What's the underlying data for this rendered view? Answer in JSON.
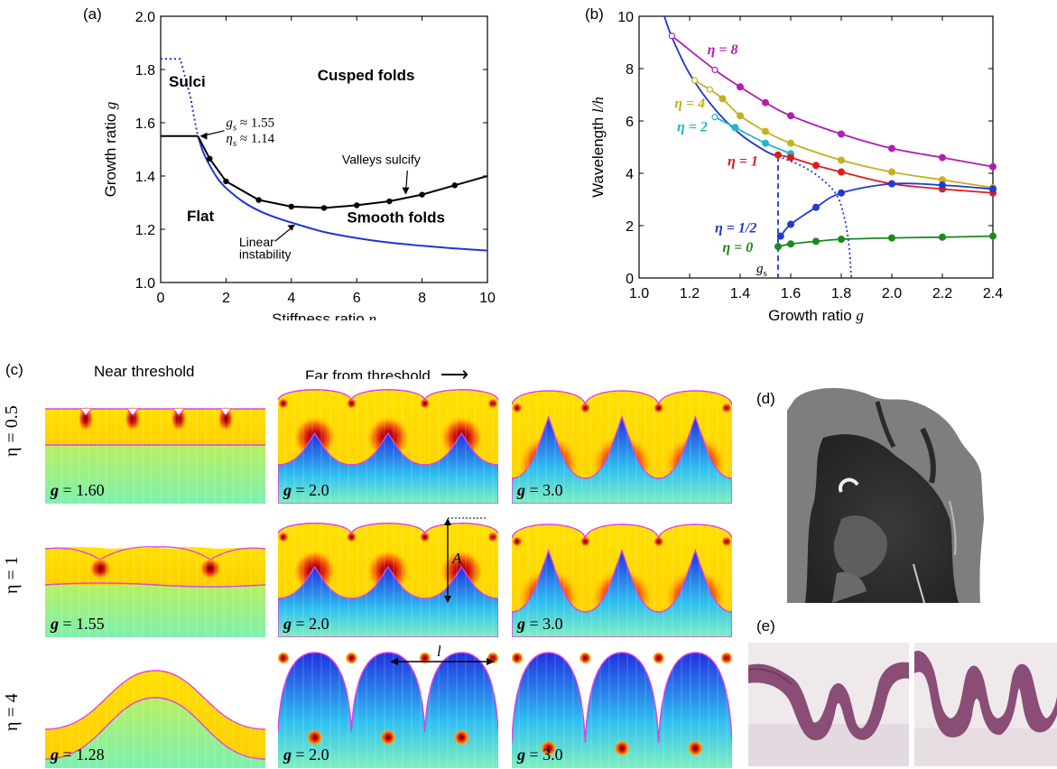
{
  "colors": {
    "blue": "#1f35d6",
    "black": "#000000",
    "eta8": "#b020b0",
    "eta4": "#c2b21e",
    "eta2": "#1fb8c8",
    "eta1": "#e01c1c",
    "eta_half": "#1f3ad6",
    "eta0": "#1a8a1a",
    "tile_outline": "#e040e0"
  },
  "panel_labels": {
    "a": "(a)",
    "b": "(b)",
    "c": "(c)",
    "d": "(d)",
    "e": "(e)"
  },
  "chart_data": [
    {
      "id": "a",
      "type": "line",
      "xlabel": "Stiffness ratio",
      "xsym": "η",
      "ylabel": "Growth ratio",
      "ysym": "g",
      "xlim": [
        0,
        10
      ],
      "ylim": [
        1.0,
        2.0
      ],
      "xticks": [
        0,
        2,
        4,
        6,
        8,
        10
      ],
      "yticks": [
        1.0,
        1.2,
        1.4,
        1.6,
        1.8,
        2.0
      ],
      "series": [
        {
          "kind": "linear_instability",
          "x": [
            0.0,
            0.6,
            0.9,
            1.0,
            1.14,
            1.3,
            1.5,
            1.75,
            2.0,
            2.5,
            3.0,
            3.5,
            4.0,
            5.0,
            6.0,
            7.0,
            8.0,
            9.0,
            10.0
          ],
          "y": [
            1.84,
            1.84,
            1.7,
            1.635,
            1.55,
            1.49,
            1.44,
            1.39,
            1.355,
            1.305,
            1.27,
            1.245,
            1.225,
            1.19,
            1.167,
            1.15,
            1.138,
            1.128,
            1.12
          ]
        },
        {
          "kind": "sulcus_threshold",
          "x": [
            0,
            1.14
          ],
          "y": [
            1.55,
            1.55
          ]
        },
        {
          "kind": "cusp_threshold",
          "x": [
            1.14,
            1.5,
            2.0,
            3.0,
            4.0,
            5.0,
            6.0,
            7.0,
            8.0,
            9.0,
            10.0
          ],
          "y": [
            1.55,
            1.465,
            1.38,
            1.31,
            1.285,
            1.28,
            1.29,
            1.305,
            1.33,
            1.365,
            1.4
          ],
          "markers": [
            1,
            2,
            3,
            4,
            5,
            6,
            7,
            8,
            9
          ]
        }
      ],
      "annotations": {
        "sulci": "Sulci",
        "cusped": "Cusped folds",
        "flat": "Flat",
        "smooth": "Smooth folds",
        "valleys": "Valleys sulcify",
        "linear1": "Linear",
        "linear2": "instability",
        "gs": "g",
        "gs_sub": "s",
        "gs_val": "≈ 1.55",
        "etas": "η",
        "etas_sub": "s",
        "etas_val": "≈ 1.14"
      }
    },
    {
      "id": "b",
      "type": "line",
      "xlabel": "Growth ratio",
      "xsym": "g",
      "ylabel": "Wavelength",
      "ysym": "l/h",
      "xlim": [
        1.0,
        2.4
      ],
      "ylim": [
        0,
        10
      ],
      "xticks": [
        1.0,
        1.2,
        1.4,
        1.6,
        1.8,
        2.0,
        2.2,
        2.4
      ],
      "yticks": [
        0,
        2,
        4,
        6,
        8,
        10
      ],
      "gs_label": "g",
      "gs_sub": "s",
      "series": [
        {
          "name": "η = 8",
          "color": "#b020b0",
          "x": [
            1.13,
            1.3,
            1.4,
            1.5,
            1.6,
            1.8,
            2.0,
            2.2,
            2.4
          ],
          "y": [
            9.25,
            7.95,
            7.3,
            6.7,
            6.2,
            5.5,
            4.95,
            4.6,
            4.25
          ],
          "open_first": 2
        },
        {
          "name": "η = 4",
          "color": "#c2b21e",
          "x": [
            1.22,
            1.28,
            1.33,
            1.4,
            1.5,
            1.6,
            1.8,
            2.0,
            2.2,
            2.4
          ],
          "y": [
            7.55,
            7.2,
            6.85,
            6.2,
            5.6,
            5.15,
            4.5,
            4.05,
            3.75,
            3.45
          ],
          "open_first": 2
        },
        {
          "name": "η = 2",
          "color": "#1fb8c8",
          "x": [
            1.3,
            1.38,
            1.5,
            1.6
          ],
          "y": [
            6.15,
            5.75,
            5.15,
            4.75
          ],
          "open_first": 1
        },
        {
          "name": "η = 1",
          "color": "#e01c1c",
          "x": [
            1.55,
            1.6,
            1.7,
            1.8,
            2.0,
            2.2,
            2.4
          ],
          "y": [
            4.7,
            4.6,
            4.3,
            4.05,
            3.6,
            3.4,
            3.25
          ],
          "open_first": 0
        },
        {
          "name": "η = 1/2",
          "color": "#1f3ad6",
          "x": [
            1.56,
            1.6,
            1.7,
            1.8,
            2.0,
            2.2,
            2.4
          ],
          "y": [
            1.6,
            2.05,
            2.7,
            3.25,
            3.6,
            3.55,
            3.4
          ],
          "open_first": 0
        },
        {
          "name": "η = 0",
          "color": "#1a8a1a",
          "x": [
            1.55,
            1.6,
            1.7,
            1.8,
            2.0,
            2.2,
            2.4
          ],
          "y": [
            1.2,
            1.3,
            1.4,
            1.48,
            1.53,
            1.56,
            1.6
          ],
          "open_first": 0
        }
      ],
      "linear_curve": {
        "x": [
          1.1,
          1.13,
          1.2,
          1.3,
          1.4,
          1.5,
          1.55
        ],
        "y": [
          10.0,
          9.2,
          7.8,
          6.45,
          5.5,
          4.85,
          4.65
        ]
      },
      "linear_curve_dotted": {
        "x": [
          1.55,
          1.65,
          1.72,
          1.78,
          1.81,
          1.83,
          1.84
        ],
        "y": [
          4.65,
          4.25,
          3.8,
          3.2,
          2.4,
          1.3,
          0.0
        ]
      },
      "vline_x": 1.55
    }
  ],
  "panel_c": {
    "col_near": "Near threshold",
    "col_far": "Far from threshold",
    "arrow": "⟶",
    "rows": [
      {
        "eta_label": "η = 0.5",
        "g": [
          "1.60",
          "2.0",
          "3.0"
        ]
      },
      {
        "eta_label": "η = 1",
        "g": [
          "1.55",
          "2.0",
          "3.0"
        ]
      },
      {
        "eta_label": "η = 4",
        "g": [
          "1.28",
          "2.0",
          "3.0"
        ]
      }
    ],
    "g_prefix": "g",
    "g_eq": " = ",
    "A_label": "A",
    "l_label": "l"
  }
}
